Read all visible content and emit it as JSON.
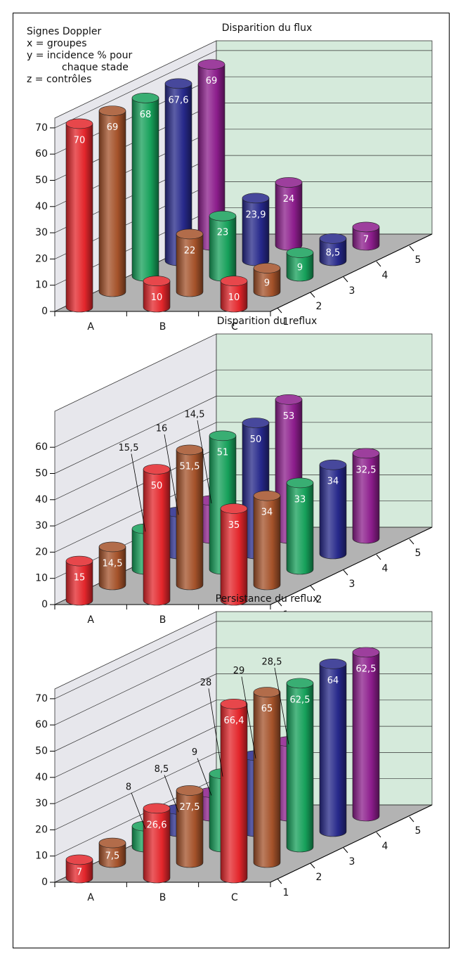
{
  "chart_data": [
    {
      "type": "bar3d",
      "title": "Disparition du flux",
      "annotations": [
        "Signes Doppler",
        "x = groupes",
        "y = incidence % pour",
        "chaque stade",
        "z = contrôles"
      ],
      "categories": [
        "A",
        "B",
        "C"
      ],
      "series": [
        {
          "name": "1",
          "color": "#e3262b",
          "values": [
            70,
            10,
            10
          ],
          "value_labels": [
            "70",
            "10",
            "10"
          ]
        },
        {
          "name": "2",
          "color": "#a4522a",
          "values": [
            69,
            22,
            9
          ],
          "value_labels": [
            "69",
            "22",
            "9"
          ]
        },
        {
          "name": "3",
          "color": "#16a05a",
          "values": [
            68,
            23,
            9
          ],
          "value_labels": [
            "68",
            "23",
            "9"
          ]
        },
        {
          "name": "4",
          "color": "#26288a",
          "values": [
            67.6,
            23.9,
            8.5
          ],
          "value_labels": [
            "67,6",
            "23,9",
            "8,5"
          ]
        },
        {
          "name": "5",
          "color": "#8c1d8c",
          "values": [
            69,
            24,
            7
          ],
          "value_labels": [
            "69",
            "24",
            "7"
          ]
        }
      ],
      "ylim": [
        0,
        70
      ],
      "yticks": [
        0,
        10,
        20,
        30,
        40,
        50,
        60,
        70
      ],
      "grid": true
    },
    {
      "type": "bar3d",
      "title": "Disparition du reflux",
      "categories": [
        "A",
        "B",
        "C"
      ],
      "series": [
        {
          "name": "1",
          "color": "#e3262b",
          "values": [
            15,
            50,
            35
          ],
          "value_labels": [
            "15",
            "50",
            "35"
          ]
        },
        {
          "name": "2",
          "color": "#a4522a",
          "values": [
            14.5,
            51.5,
            34
          ],
          "value_labels": [
            "14,5",
            "51,5",
            "34"
          ]
        },
        {
          "name": "3",
          "color": "#16a05a",
          "values": [
            15.5,
            51,
            33
          ],
          "value_labels": [
            "15,5",
            "51",
            "33"
          ]
        },
        {
          "name": "4",
          "color": "#26288a",
          "values": [
            16,
            50,
            34
          ],
          "value_labels": [
            "16",
            "50",
            "34"
          ]
        },
        {
          "name": "5",
          "color": "#8c1d8c",
          "values": [
            14.5,
            53,
            32.5
          ],
          "value_labels": [
            "14,5",
            "53",
            "32,5"
          ]
        }
      ],
      "ylim": [
        0,
        60
      ],
      "yticks": [
        0,
        10,
        20,
        30,
        40,
        50,
        60
      ],
      "grid": true
    },
    {
      "type": "bar3d",
      "title": "Persistance du reflux",
      "categories": [
        "A",
        "B",
        "C"
      ],
      "series": [
        {
          "name": "1",
          "color": "#e3262b",
          "values": [
            7,
            26.6,
            66.4
          ],
          "value_labels": [
            "7",
            "26,6",
            "66,4"
          ]
        },
        {
          "name": "2",
          "color": "#a4522a",
          "values": [
            7.5,
            27.5,
            65
          ],
          "value_labels": [
            "7,5",
            "27,5",
            "65"
          ]
        },
        {
          "name": "3",
          "color": "#16a05a",
          "values": [
            8,
            28,
            62.5
          ],
          "value_labels": [
            "8",
            "28",
            "62,5"
          ]
        },
        {
          "name": "4",
          "color": "#26288a",
          "values": [
            8.5,
            29,
            64
          ],
          "value_labels": [
            "8,5",
            "29",
            "64"
          ]
        },
        {
          "name": "5",
          "color": "#8c1d8c",
          "values": [
            9,
            28.5,
            62.5
          ],
          "value_labels": [
            "9",
            "28,5",
            "62,5"
          ]
        }
      ],
      "ylim": [
        0,
        70
      ],
      "yticks": [
        0,
        10,
        20,
        30,
        40,
        50,
        60,
        70
      ],
      "grid": true
    }
  ]
}
